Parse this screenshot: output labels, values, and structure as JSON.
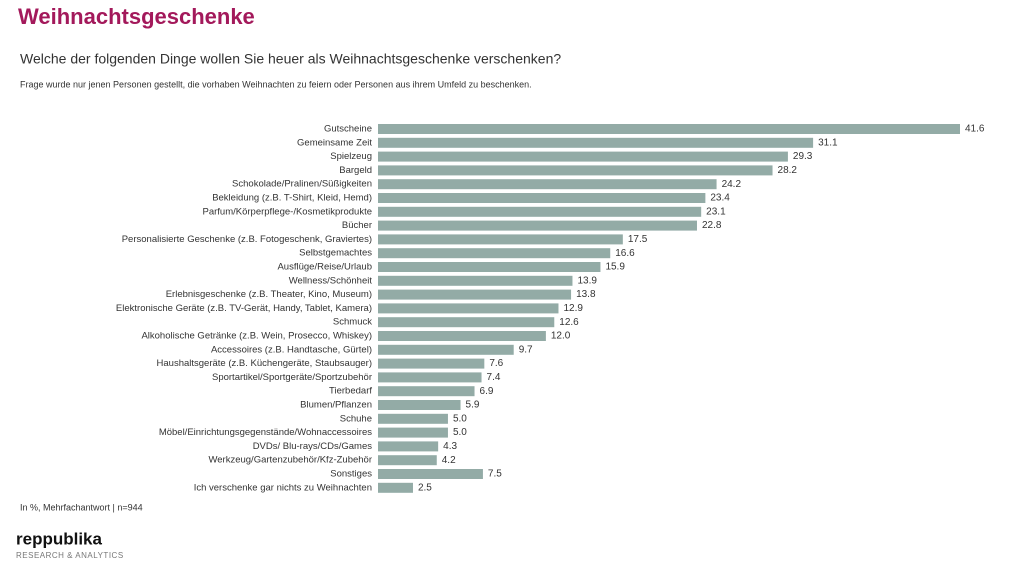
{
  "chart_data": {
    "type": "bar",
    "orientation": "horizontal",
    "title": "Weihnachtsgeschenke",
    "subtitle": "Welche der folgenden Dinge wollen Sie heuer als Weihnachtsgeschenke verschenken?",
    "note": "Frage wurde nur jenen Personen gestellt, die vorhaben Weihnachten zu feiern oder Personen aus ihrem Umfeld zu beschenken.",
    "footnote": "In %, Mehrfachantwort | n=944",
    "color": "#93aba6",
    "categories": [
      "Gutscheine",
      "Gemeinsame Zeit",
      "Spielzeug",
      "Bargeld",
      "Schokolade/Pralinen/Süßigkeiten",
      "Bekleidung (z.B. T-Shirt, Kleid, Hemd)",
      "Parfum/Körperpflege-/Kosmetikprodukte",
      "Bücher",
      "Personalisierte Geschenke (z.B. Fotogeschenk, Graviertes)",
      "Selbstgemachtes",
      "Ausflüge/Reise/Urlaub",
      "Wellness/Schönheit",
      "Erlebnisgeschenke (z.B. Theater, Kino, Museum)",
      "Elektronische Geräte (z.B. TV-Gerät, Handy, Tablet, Kamera)",
      "Schmuck",
      "Alkoholische Getränke (z.B. Wein, Prosecco, Whiskey)",
      "Accessoires (z.B. Handtasche, Gürtel)",
      "Haushaltsgeräte (z.B. Küchengeräte, Staubsauger)",
      "Sportartikel/Sportgeräte/Sportzubehör",
      "Tierbedarf",
      "Blumen/Pflanzen",
      "Schuhe",
      "Möbel/Einrichtungsgegenstände/Wohnaccessoires",
      "DVDs/ Blu-rays/CDs/Games",
      "Werkzeug/Gartenzubehör/Kfz-Zubehör",
      "Sonstiges",
      "Ich verschenke gar nichts zu Weihnachten"
    ],
    "values": [
      41.6,
      31.1,
      29.3,
      28.2,
      24.2,
      23.4,
      23.1,
      22.8,
      17.5,
      16.6,
      15.9,
      13.9,
      13.8,
      12.9,
      12.6,
      12.0,
      9.7,
      7.6,
      7.4,
      6.9,
      5.9,
      5.0,
      5.0,
      4.3,
      4.2,
      7.5,
      2.5
    ],
    "value_labels": [
      "41.6",
      "31.1",
      "29.3",
      "28.2",
      "24.2",
      "23.4",
      "23.1",
      "22.8",
      "17.5",
      "16.6",
      "15.9",
      "13.9",
      "13.8",
      "12.9",
      "12.6",
      "12.0",
      "9.7",
      "7.6",
      "7.4",
      "6.9",
      "5.9",
      "5.0",
      "5.0",
      "4.3",
      "4.2",
      "7.5",
      "2.5"
    ]
  },
  "logo": {
    "name": "reppublika",
    "tagline": "RESEARCH & ANALYTICS"
  }
}
